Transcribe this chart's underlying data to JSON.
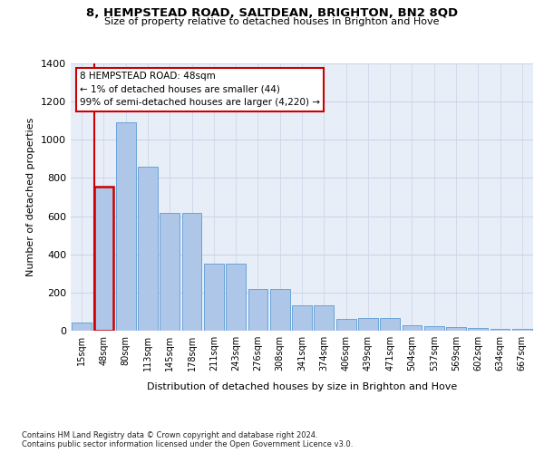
{
  "title1": "8, HEMPSTEAD ROAD, SALTDEAN, BRIGHTON, BN2 8QD",
  "title2": "Size of property relative to detached houses in Brighton and Hove",
  "xlabel": "Distribution of detached houses by size in Brighton and Hove",
  "ylabel": "Number of detached properties",
  "footnote1": "Contains HM Land Registry data © Crown copyright and database right 2024.",
  "footnote2": "Contains public sector information licensed under the Open Government Licence v3.0.",
  "annotation_line1": "8 HEMPSTEAD ROAD: 48sqm",
  "annotation_line2": "← 1% of detached houses are smaller (44)",
  "annotation_line3": "99% of semi-detached houses are larger (4,220) →",
  "bar_labels": [
    "15sqm",
    "48sqm",
    "80sqm",
    "113sqm",
    "145sqm",
    "178sqm",
    "211sqm",
    "243sqm",
    "276sqm",
    "308sqm",
    "341sqm",
    "374sqm",
    "406sqm",
    "439sqm",
    "471sqm",
    "504sqm",
    "537sqm",
    "569sqm",
    "602sqm",
    "634sqm",
    "667sqm"
  ],
  "bar_values": [
    44,
    755,
    1090,
    860,
    615,
    615,
    350,
    350,
    220,
    220,
    135,
    135,
    60,
    65,
    65,
    28,
    25,
    20,
    12,
    8,
    8
  ],
  "bar_color": "#aec6e8",
  "bar_edge_color": "#5b9bd5",
  "highlight_bar_index": 1,
  "highlight_color": "#cc0000",
  "ylim": [
    0,
    1400
  ],
  "yticks": [
    0,
    200,
    400,
    600,
    800,
    1000,
    1200,
    1400
  ],
  "grid_color": "#c8d4e8",
  "background_color": "#e8eef7",
  "fig_bg_color": "#ffffff",
  "vline_color": "#cc0000"
}
